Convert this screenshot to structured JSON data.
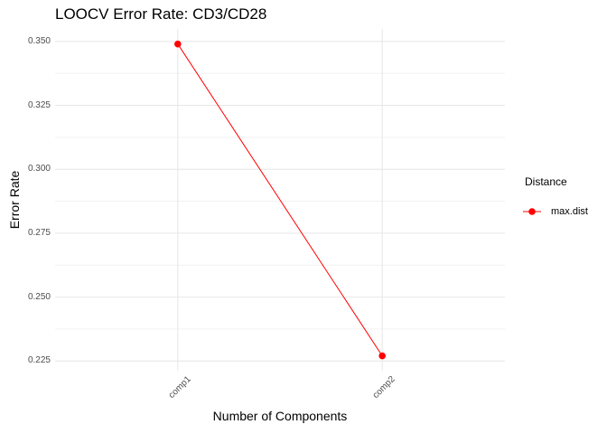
{
  "chart_data": {
    "type": "line",
    "title": "LOOCV Error Rate: CD3/CD28",
    "xlabel": "Number of Components",
    "ylabel": "Error Rate",
    "categories": [
      "comp1",
      "comp2"
    ],
    "series": [
      {
        "name": "max.dist",
        "color": "#ff0000",
        "values": [
          0.349,
          0.227
        ]
      }
    ],
    "yticks": [
      0.225,
      0.25,
      0.275,
      0.3,
      0.325,
      0.35
    ],
    "ytick_decimals": 3,
    "ylim": [
      0.2212,
      0.3549
    ],
    "grid": true,
    "minor_grid": true,
    "legend_title": "Distance",
    "legend_position": "right",
    "background": "#ffffff",
    "grid_color_major": "#e6e6e6",
    "grid_color_minor": "#f2f2f2",
    "tick_label_color": "#4d4d4d"
  }
}
